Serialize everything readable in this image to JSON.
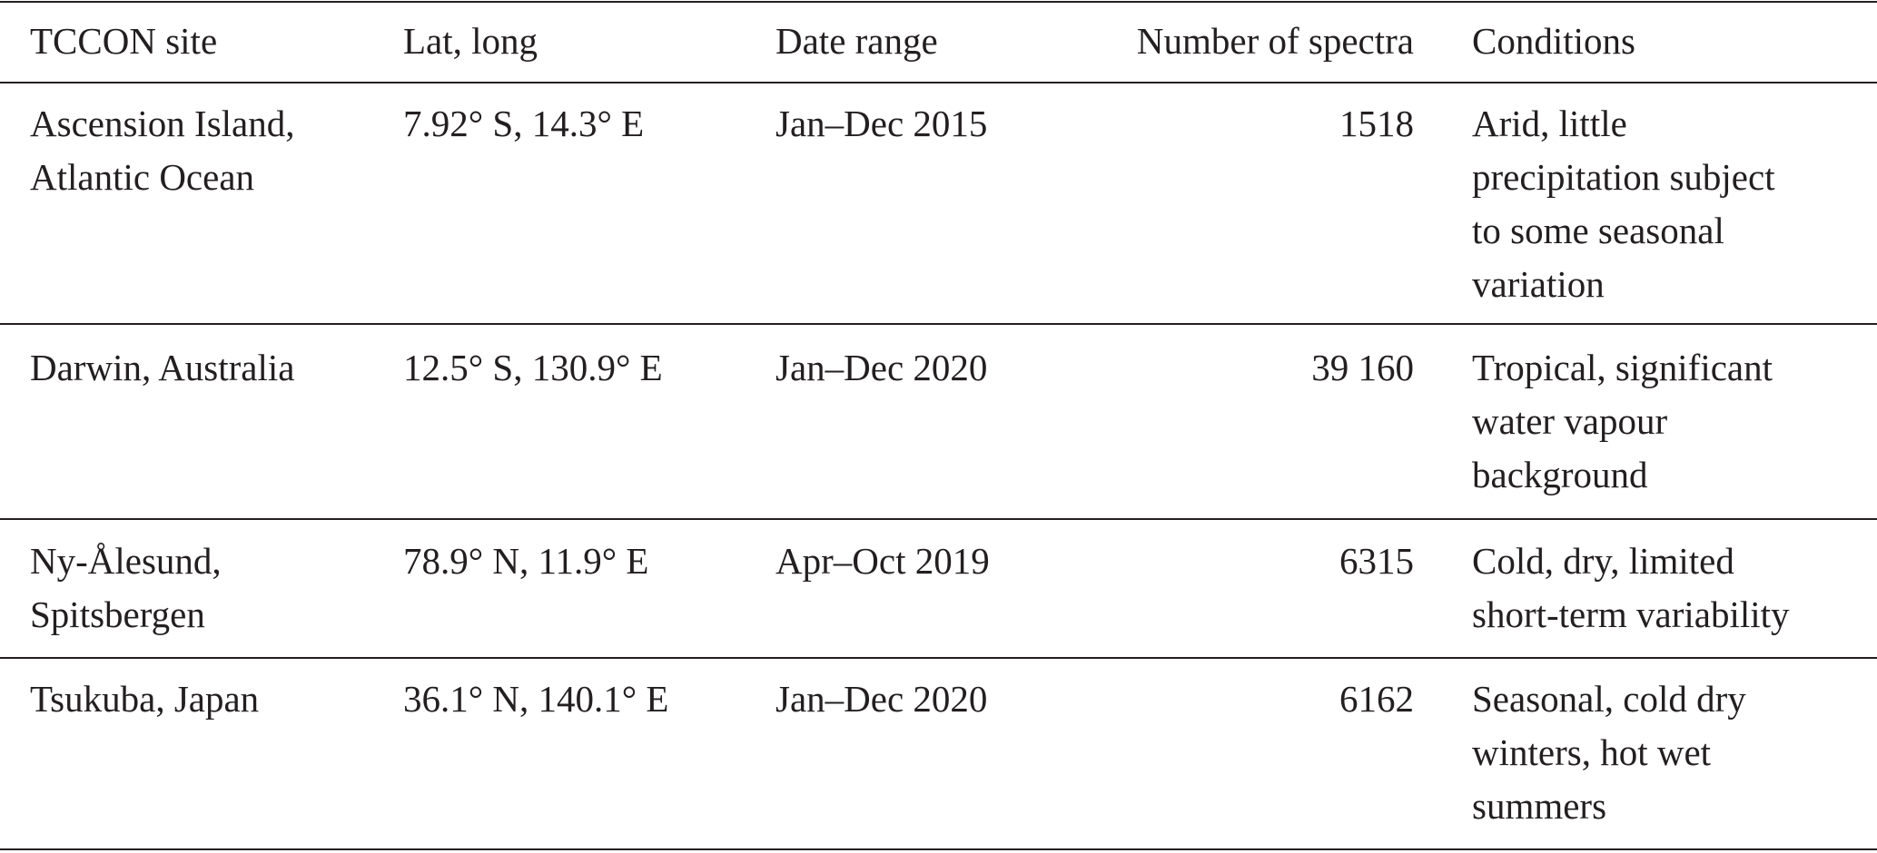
{
  "table": {
    "header": [
      "TCCON site",
      "Lat, long",
      "Date range",
      "Number of spectra",
      "Conditions"
    ],
    "rows": [
      [
        [
          "Ascension Island,",
          "Atlantic Ocean"
        ],
        [
          "7.92° S, 14.3° E"
        ],
        [
          "Jan–Dec 2015"
        ],
        [
          "1518"
        ],
        [
          "Arid, little",
          "precipitation subject",
          "to some seasonal",
          "variation"
        ]
      ],
      [
        [
          "Darwin, Australia"
        ],
        [
          "12.5° S, 130.9° E"
        ],
        [
          "Jan–Dec 2020"
        ],
        [
          "39 160"
        ],
        [
          "Tropical, significant",
          "water vapour",
          "background"
        ]
      ],
      [
        [
          "Ny-Ålesund,",
          "Spitsbergen"
        ],
        [
          "78.9° N, 11.9° E"
        ],
        [
          "Apr–Oct 2019"
        ],
        [
          "6315"
        ],
        [
          "Cold, dry, limited",
          "short-term variability"
        ]
      ],
      [
        [
          "Tsukuba, Japan"
        ],
        [
          "36.1° N, 140.1° E"
        ],
        [
          "Jan–Dec 2020"
        ],
        [
          "6162"
        ],
        [
          "Seasonal, cold dry",
          "winters, hot wet",
          "summers"
        ]
      ]
    ]
  }
}
